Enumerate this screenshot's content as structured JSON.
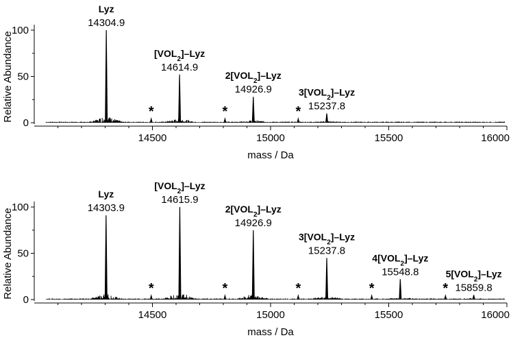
{
  "chart_data": [
    {
      "type": "line",
      "xlabel": "mass / Da",
      "ylabel": "Relative Abundance",
      "xlim": [
        14000,
        16000
      ],
      "ylim": [
        0,
        100
      ],
      "x_ticks": [
        14500,
        15000,
        15500,
        16000
      ],
      "y_ticks": [
        0,
        50,
        100
      ],
      "peaks": [
        {
          "mass": 14304.9,
          "abundance": 100,
          "name": "Lyz",
          "label": "14304.9"
        },
        {
          "mass": 14614.9,
          "abundance": 52,
          "name": "[VOL2]–Lyz",
          "label": "14614.9"
        },
        {
          "mass": 14926.9,
          "abundance": 28,
          "name": "2[VOL2]–Lyz",
          "label": "14926.9"
        },
        {
          "mass": 15237.8,
          "abundance": 10,
          "name": "3[VOL2]–Lyz",
          "label": "15237.8"
        }
      ],
      "asterisks": [
        14495,
        14807,
        15117
      ]
    },
    {
      "type": "line",
      "xlabel": "mass / Da",
      "ylabel": "Relative Abundance",
      "xlim": [
        14000,
        16000
      ],
      "ylim": [
        0,
        100
      ],
      "x_ticks": [
        14500,
        15000,
        15500,
        16000
      ],
      "y_ticks": [
        0,
        50,
        100
      ],
      "peaks": [
        {
          "mass": 14303.9,
          "abundance": 91,
          "name": "Lyz",
          "label": "14303.9"
        },
        {
          "mass": 14615.9,
          "abundance": 100,
          "name": "[VOL2]–Lyz",
          "label": "14615.9"
        },
        {
          "mass": 14926.9,
          "abundance": 75,
          "name": "2[VOL2]–Lyz",
          "label": "14926.9"
        },
        {
          "mass": 15237.8,
          "abundance": 45,
          "name": "3[VOL2]–Lyz",
          "label": "15237.8"
        },
        {
          "mass": 15548.8,
          "abundance": 22,
          "name": "4[VOL2]–Lyz",
          "label": "15548.8"
        },
        {
          "mass": 15859.8,
          "abundance": 5,
          "name": "5[VOL2]–Lyz",
          "label": "15859.8"
        }
      ],
      "asterisks": [
        14495,
        14807,
        15117,
        15428,
        15740
      ]
    }
  ],
  "asterisk_symbol": "*",
  "colors": {
    "trace": "#000000",
    "background": "#ffffff"
  }
}
